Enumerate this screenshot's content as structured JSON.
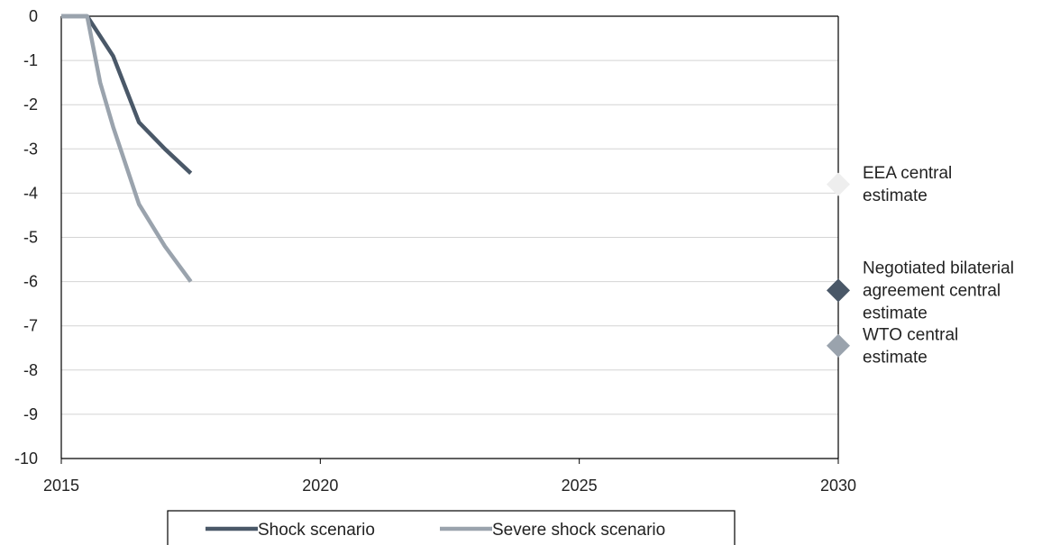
{
  "chart_data": {
    "type": "line",
    "title": "",
    "xlabel": "",
    "ylabel": "",
    "xlim": [
      2015,
      2030
    ],
    "ylim": [
      -10,
      0
    ],
    "x_ticks": [
      "2015",
      "2020",
      "2025",
      "2030"
    ],
    "y_ticks": [
      "0",
      "-1",
      "-2",
      "-3",
      "-4",
      "-5",
      "-6",
      "-7",
      "-8",
      "-9",
      "-10"
    ],
    "grid": true,
    "series": [
      {
        "name": "Shock scenario",
        "color": "#4a5868",
        "points": [
          [
            2015.0,
            0
          ],
          [
            2015.5,
            0
          ],
          [
            2016.0,
            -0.9
          ],
          [
            2016.5,
            -2.4
          ],
          [
            2017.0,
            -3.0
          ],
          [
            2017.5,
            -3.55
          ]
        ]
      },
      {
        "name": "Severe shock scenario",
        "color": "#9aa3ad",
        "points": [
          [
            2015.0,
            0
          ],
          [
            2015.5,
            0
          ],
          [
            2015.75,
            -1.5
          ],
          [
            2016.0,
            -2.5
          ],
          [
            2016.5,
            -4.25
          ],
          [
            2017.0,
            -5.2
          ],
          [
            2017.5,
            -6.0
          ]
        ]
      }
    ],
    "annotations": [
      {
        "lines": [
          "EEA central",
          "estimate"
        ],
        "x": 2030,
        "y": -3.8,
        "marker_color": "#eeeeee"
      },
      {
        "lines": [
          "Negotiated bilaterial",
          "agreement central",
          "estimate"
        ],
        "x": 2030,
        "y": -6.2,
        "marker_color": "#4a5868"
      },
      {
        "lines": [
          "WTO central",
          "estimate"
        ],
        "x": 2030,
        "y": -7.45,
        "marker_color": "#9aa3ad"
      }
    ],
    "legend": {
      "position": "bottom",
      "items": [
        "Shock scenario",
        "Severe shock scenario"
      ]
    }
  }
}
